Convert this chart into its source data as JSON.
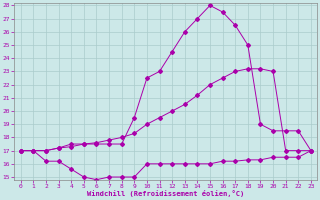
{
  "xlabel": "Windchill (Refroidissement éolien,°C)",
  "line1_x": [
    0,
    1,
    2,
    3,
    4,
    5,
    6,
    7,
    8,
    9,
    10,
    11,
    12,
    13,
    14,
    15,
    16,
    17,
    18,
    19,
    20,
    21,
    22,
    23
  ],
  "line1_y": [
    17,
    17,
    16.2,
    16.2,
    15.6,
    15.0,
    14.8,
    15.0,
    15.0,
    15.0,
    16.0,
    16.0,
    16.0,
    16.0,
    16.0,
    16.0,
    16.2,
    16.2,
    16.3,
    16.3,
    16.5,
    16.5,
    16.5,
    17.0
  ],
  "line2_x": [
    0,
    1,
    2,
    3,
    4,
    5,
    6,
    7,
    8,
    9,
    10,
    11,
    12,
    13,
    14,
    15,
    16,
    17,
    18,
    19,
    20,
    21,
    22,
    23
  ],
  "line2_y": [
    17,
    17,
    17,
    17.2,
    17.3,
    17.5,
    17.6,
    17.8,
    18.0,
    18.3,
    19.0,
    19.5,
    20.0,
    20.5,
    21.2,
    22.0,
    22.5,
    23.0,
    23.2,
    23.2,
    23.0,
    17.0,
    17.0,
    17.0
  ],
  "line3_x": [
    0,
    1,
    2,
    3,
    4,
    5,
    6,
    7,
    8,
    9,
    10,
    11,
    12,
    13,
    14,
    15,
    16,
    17,
    18,
    19,
    20,
    21,
    22,
    23
  ],
  "line3_y": [
    17,
    17,
    17,
    17.2,
    17.5,
    17.5,
    17.5,
    17.5,
    17.5,
    19.5,
    22.5,
    23.0,
    24.5,
    26.0,
    27.0,
    28.0,
    27.5,
    26.5,
    25.0,
    19.0,
    18.5,
    18.5,
    18.5,
    17.0
  ],
  "color": "#aa00aa",
  "bg_color": "#cce8e8",
  "grid_color": "#aacccc",
  "ylim": [
    14.8,
    28.2
  ],
  "xlim": [
    -0.5,
    23.5
  ],
  "yticks": [
    15,
    16,
    17,
    18,
    19,
    20,
    21,
    22,
    23,
    24,
    25,
    26,
    27,
    28
  ],
  "xticks": [
    0,
    1,
    2,
    3,
    4,
    5,
    6,
    7,
    8,
    9,
    10,
    11,
    12,
    13,
    14,
    15,
    16,
    17,
    18,
    19,
    20,
    21,
    22,
    23
  ],
  "marker_size": 2.0,
  "line_width": 0.7,
  "tick_fontsize": 4.5,
  "xlabel_fontsize": 5.0
}
